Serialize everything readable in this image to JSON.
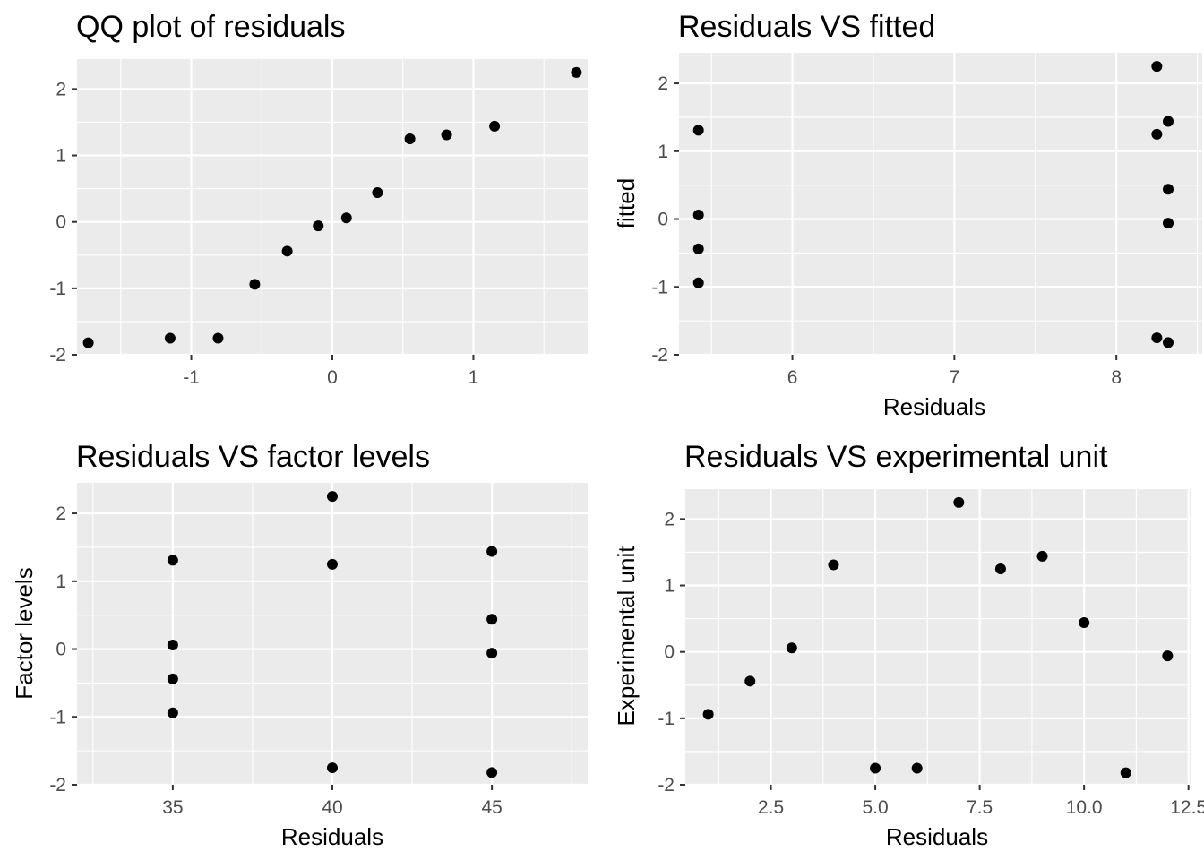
{
  "chart_data": [
    {
      "type": "scatter",
      "title": "QQ plot of residuals",
      "xlabel": "",
      "ylabel": "",
      "xlim": [
        -1.81,
        1.81
      ],
      "ylim": [
        -2.0,
        2.45
      ],
      "xticks": [
        -1,
        0,
        1
      ],
      "xtick_labels": [
        "-1",
        "0",
        "1"
      ],
      "yticks": [
        -2,
        -1,
        0,
        1,
        2
      ],
      "ytick_labels": [
        "-2",
        "-1",
        "0",
        "1",
        "2"
      ],
      "grid": true,
      "points": [
        {
          "x": -1.73,
          "y": -1.82
        },
        {
          "x": -1.15,
          "y": -1.75
        },
        {
          "x": -0.81,
          "y": -1.75
        },
        {
          "x": -0.55,
          "y": -0.94
        },
        {
          "x": -0.32,
          "y": -0.44
        },
        {
          "x": -0.1,
          "y": -0.06
        },
        {
          "x": 0.1,
          "y": 0.06
        },
        {
          "x": 0.32,
          "y": 0.44
        },
        {
          "x": 0.55,
          "y": 1.25
        },
        {
          "x": 0.81,
          "y": 1.31
        },
        {
          "x": 1.15,
          "y": 1.44
        },
        {
          "x": 1.73,
          "y": 2.25
        }
      ]
    },
    {
      "type": "scatter",
      "title": "Residuals VS fitted",
      "xlabel": "Residuals",
      "ylabel": "fitted",
      "xlim": [
        5.3,
        8.53
      ],
      "ylim": [
        -2.0,
        2.45
      ],
      "xticks": [
        6,
        7,
        8
      ],
      "xtick_labels": [
        "6",
        "7",
        "8"
      ],
      "yticks": [
        -2,
        -1,
        0,
        1,
        2
      ],
      "ytick_labels": [
        "-2",
        "-1",
        "0",
        "1",
        "2"
      ],
      "grid": true,
      "points": [
        {
          "x": 5.42,
          "y": 1.31
        },
        {
          "x": 5.42,
          "y": 0.06
        },
        {
          "x": 5.42,
          "y": -0.44
        },
        {
          "x": 5.42,
          "y": -0.94
        },
        {
          "x": 8.25,
          "y": 2.25
        },
        {
          "x": 8.32,
          "y": 1.44
        },
        {
          "x": 8.25,
          "y": 1.25
        },
        {
          "x": 8.32,
          "y": 0.44
        },
        {
          "x": 8.32,
          "y": -0.06
        },
        {
          "x": 8.25,
          "y": -1.75
        },
        {
          "x": 8.32,
          "y": -1.82
        }
      ]
    },
    {
      "type": "scatter",
      "title": "Residuals VS factor levels",
      "xlabel": "Residuals",
      "ylabel": "Factor levels",
      "xlim": [
        32.0,
        48.0
      ],
      "ylim": [
        -2.0,
        2.45
      ],
      "xticks": [
        35,
        40,
        45
      ],
      "xtick_labels": [
        "35",
        "40",
        "45"
      ],
      "yticks": [
        -2,
        -1,
        0,
        1,
        2
      ],
      "ytick_labels": [
        "-2",
        "-1",
        "0",
        "1",
        "2"
      ],
      "grid": true,
      "points": [
        {
          "x": 35,
          "y": 1.31
        },
        {
          "x": 35,
          "y": 0.06
        },
        {
          "x": 35,
          "y": -0.44
        },
        {
          "x": 35,
          "y": -0.94
        },
        {
          "x": 40,
          "y": 2.25
        },
        {
          "x": 40,
          "y": 1.25
        },
        {
          "x": 40,
          "y": -1.75
        },
        {
          "x": 45,
          "y": 1.44
        },
        {
          "x": 45,
          "y": 0.44
        },
        {
          "x": 45,
          "y": -0.06
        },
        {
          "x": 45,
          "y": -1.82
        }
      ]
    },
    {
      "type": "scatter",
      "title": "Residuals VS experimental unit",
      "xlabel": "Residuals",
      "ylabel": "Experimental unit",
      "xlim": [
        0.45,
        12.55
      ],
      "ylim": [
        -2.0,
        2.45
      ],
      "xticks": [
        2.5,
        5.0,
        7.5,
        10.0,
        12.5
      ],
      "xtick_labels": [
        "2.5",
        "5.0",
        "7.5",
        "10.0",
        "12.5"
      ],
      "yticks": [
        -2,
        -1,
        0,
        1,
        2
      ],
      "ytick_labels": [
        "-2",
        "-1",
        "0",
        "1",
        "2"
      ],
      "grid": true,
      "points": [
        {
          "x": 1,
          "y": -0.94
        },
        {
          "x": 2,
          "y": -0.44
        },
        {
          "x": 3,
          "y": 0.06
        },
        {
          "x": 4,
          "y": 1.31
        },
        {
          "x": 5,
          "y": -1.75
        },
        {
          "x": 6,
          "y": -1.75
        },
        {
          "x": 7,
          "y": 2.25
        },
        {
          "x": 8,
          "y": 1.25
        },
        {
          "x": 9,
          "y": 1.44
        },
        {
          "x": 10,
          "y": 0.44
        },
        {
          "x": 11,
          "y": -1.82
        },
        {
          "x": 12,
          "y": -0.06
        }
      ]
    }
  ]
}
